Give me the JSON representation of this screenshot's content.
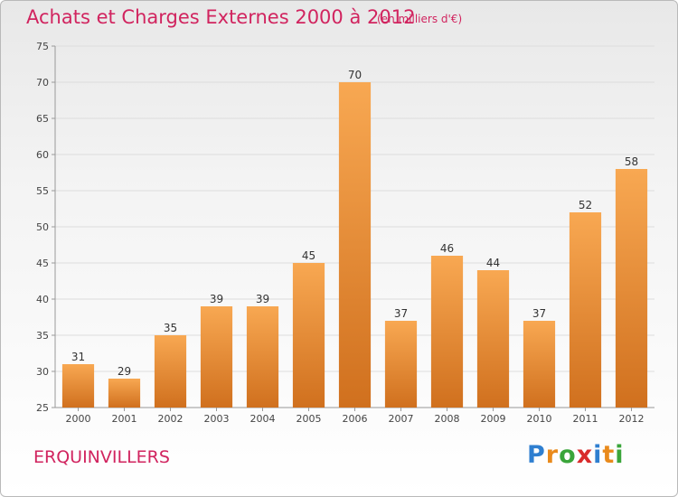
{
  "title": "Achats et Charges Externes 2000 à 2012",
  "subtitle": "(en milliers d'€)",
  "commune": "ERQUINVILLERS",
  "logo": {
    "letters": [
      "P",
      "r",
      "o",
      "x",
      "i",
      "t",
      "i"
    ],
    "colors": [
      "#2f7fd0",
      "#e98a1c",
      "#3aa53a",
      "#d92b2b",
      "#2f7fd0",
      "#e98a1c",
      "#3aa53a"
    ]
  },
  "colors": {
    "title": "#d1245f",
    "bar_light": "#f8a852",
    "bar_dark": "#d0701e",
    "grid": "#dddddd"
  },
  "chart_data": {
    "type": "bar",
    "categories": [
      "2000",
      "2001",
      "2002",
      "2003",
      "2004",
      "2005",
      "2006",
      "2007",
      "2008",
      "2009",
      "2010",
      "2011",
      "2012"
    ],
    "values": [
      31,
      29,
      35,
      39,
      39,
      45,
      70,
      37,
      46,
      44,
      37,
      52,
      58
    ],
    "yticks": [
      25,
      30,
      35,
      40,
      45,
      50,
      55,
      60,
      65,
      70,
      75
    ],
    "ylim": [
      25,
      75
    ],
    "grid": true
  }
}
